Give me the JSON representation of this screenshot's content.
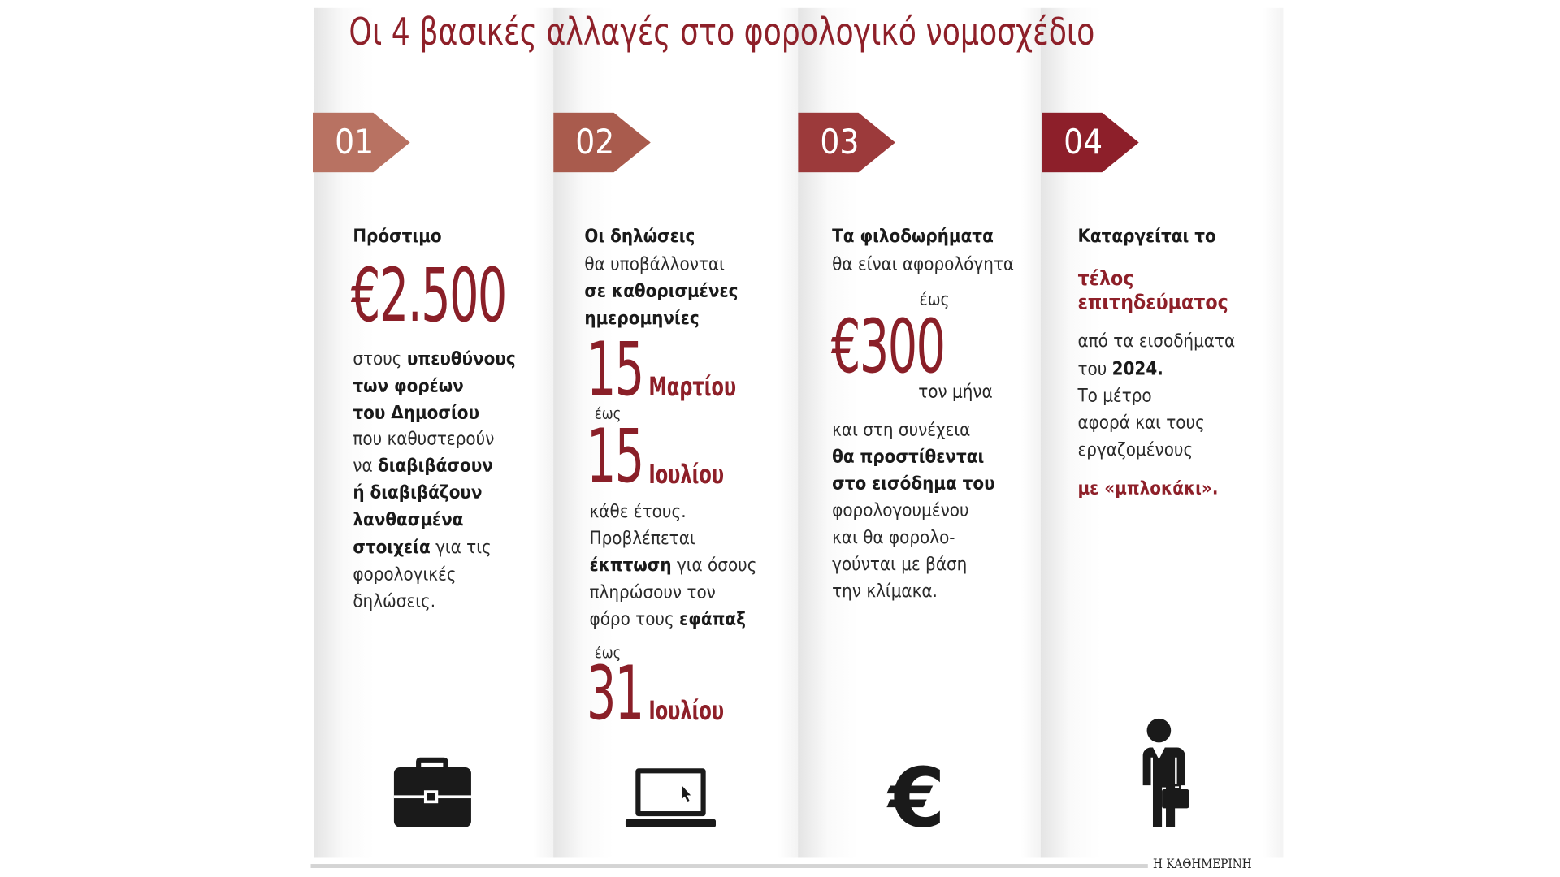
{
  "title": "Οι 4 βασικές αλλαγές στο φορολογικό νομοσχέδιο",
  "columns": [
    {
      "number": "01",
      "heading": "Πρόστιμο",
      "amount": "€2.500",
      "text": [
        [
          "στους",
          "υπευθύνους"
        ],
        [
          "των φορέων"
        ],
        [
          "του Δημοσίου"
        ],
        [
          "που καθυστερούν"
        ],
        [
          "να",
          "διαβιβάσουν"
        ],
        [
          "ή διαβιβάζουν"
        ],
        [
          "λανθασμένα"
        ],
        [
          "στοιχεία",
          "για τις"
        ],
        [
          "φορολογικές"
        ],
        [
          "δηλώσεις."
        ]
      ]
    },
    {
      "number": "02",
      "heading": "Οι δηλώσεις",
      "intro": [
        "θα υποβάλλονται",
        "σε καθορισμένες",
        "ημερομηνίες"
      ],
      "date1": {
        "day": "15",
        "month": "Μαρτίου"
      },
      "until1": "έως",
      "date2": {
        "day": "15",
        "month": "Ιουλίου"
      },
      "text": [
        [
          "κάθε έτους."
        ],
        [
          "Προβλέπεται"
        ],
        [
          "έκπτωση",
          "για όσους"
        ],
        [
          "πληρώσουν τον"
        ],
        [
          "φόρο τους",
          "εφάπαξ"
        ]
      ],
      "until2": "έως",
      "date3": {
        "day": "31",
        "month": "Ιουλίου"
      }
    },
    {
      "number": "03",
      "heading": "Τα φιλοδωρήματα",
      "intro": "θα είναι αφορολόγητα",
      "until": "έως",
      "amount": "€300",
      "per": "τον μήνα",
      "text": [
        "και στη συνέχεια",
        "θα προστίθενται",
        "στο εισόδημα του",
        "φορολογουμένου",
        "και θα φορολο-",
        "γούνται με βάση",
        "την κλίμακα."
      ]
    },
    {
      "number": "04",
      "heading": "Καταργείται το",
      "highlight": [
        "τέλος",
        "επιτηδεύματος"
      ],
      "text": [
        [
          "από τα εισοδήματα"
        ],
        [
          "του",
          "2024."
        ],
        [
          "Το μέτρο"
        ],
        [
          "αφορά και τους"
        ],
        [
          "εργαζομένους"
        ]
      ],
      "closing": "με «μπλοκάκι»."
    }
  ],
  "footer": "Η ΚΑΘΗΜΕΡΙΝΗ"
}
